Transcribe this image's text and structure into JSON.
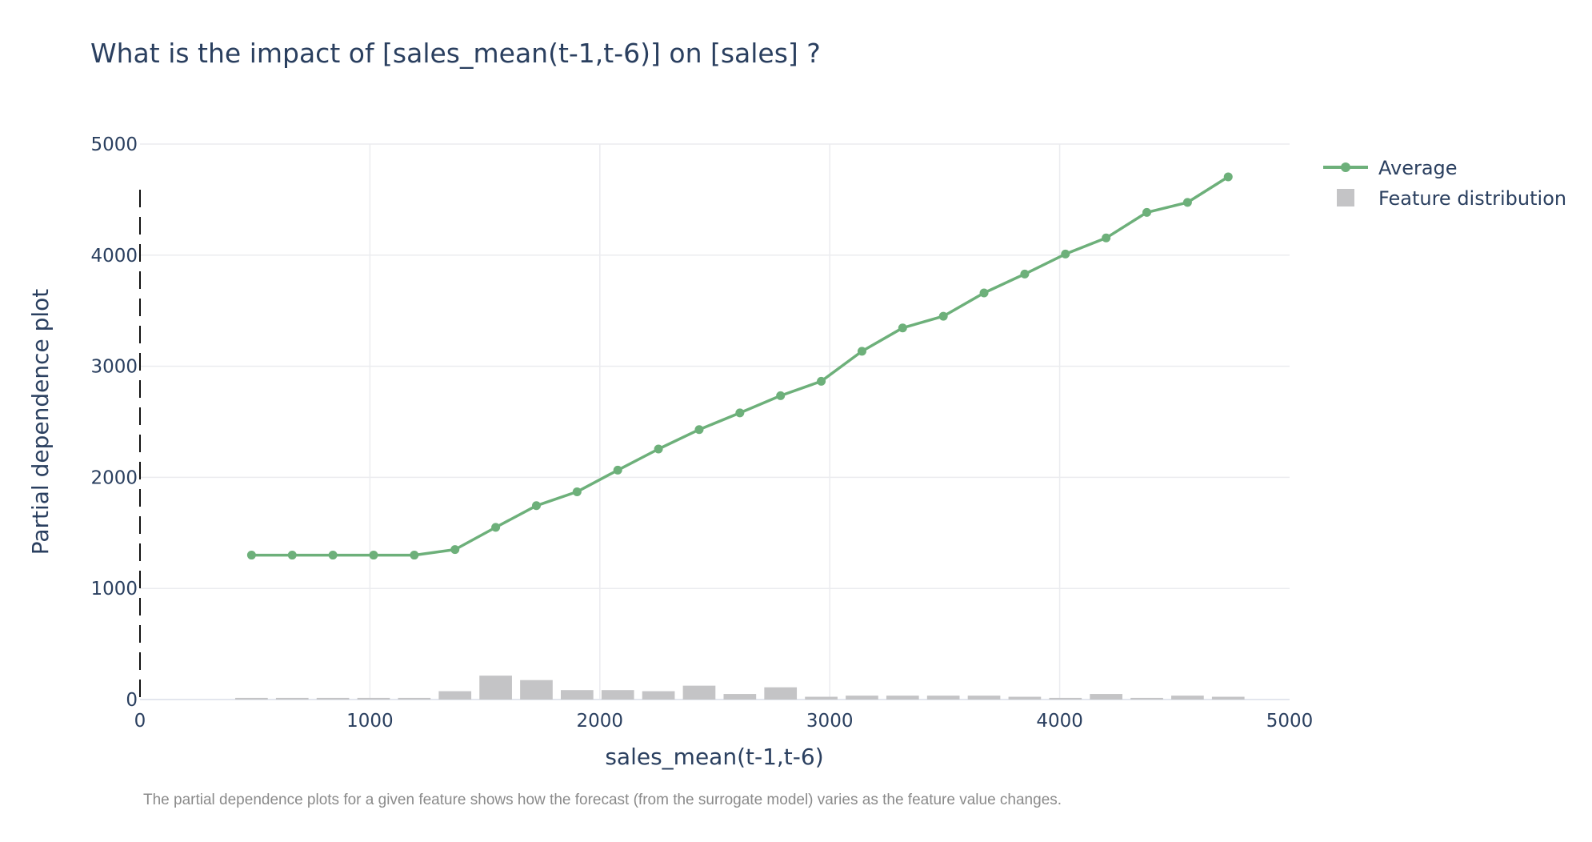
{
  "chart_data": {
    "type": "line",
    "title": "What is the impact of [sales_mean(t-1,t-6)] on [sales] ?",
    "xlabel": "sales_mean(t-1,t-6)",
    "ylabel": "Partial dependence plot",
    "xlim": [
      0,
      5000
    ],
    "ylim": [
      0,
      5000
    ],
    "x_ticks": [
      "0",
      "1000",
      "2000",
      "3000",
      "4000",
      "5000"
    ],
    "y_ticks": [
      "0",
      "1000",
      "2000",
      "3000",
      "4000",
      "5000"
    ],
    "grid": true,
    "legend_position": "top-right, outside plot",
    "caption": "The partial dependence plots for a given feature shows how the forecast  (from the surrogate model) varies as the feature value changes.",
    "series": [
      {
        "name": "Average",
        "type": "line+markers",
        "color": "#6db07a",
        "x": [
          485,
          662,
          839,
          1016,
          1193,
          1370,
          1547,
          1724,
          1901,
          2078,
          2255,
          2432,
          2609,
          2786,
          2963,
          3140,
          3317,
          3494,
          3671,
          3848,
          4025,
          4202,
          4379,
          4556,
          4733
        ],
        "y": [
          1300,
          1300,
          1300,
          1300,
          1300,
          1350,
          1550,
          1745,
          1870,
          2065,
          2255,
          2430,
          2580,
          2735,
          2865,
          3135,
          3345,
          3450,
          3660,
          3830,
          4010,
          4155,
          4385,
          4475,
          4705
        ]
      },
      {
        "name": "Feature distribution",
        "type": "bar",
        "color": "#c4c4c6",
        "x": [
          485,
          662,
          839,
          1016,
          1193,
          1370,
          1547,
          1724,
          1901,
          2078,
          2255,
          2432,
          2609,
          2786,
          2963,
          3140,
          3317,
          3494,
          3671,
          3848,
          4025,
          4202,
          4379,
          4556,
          4733
        ],
        "values": [
          15,
          15,
          15,
          15,
          15,
          75,
          215,
          175,
          85,
          85,
          75,
          125,
          50,
          110,
          25,
          35,
          35,
          35,
          35,
          25,
          15,
          50,
          15,
          35,
          25
        ]
      }
    ],
    "annotation": {
      "type": "dashed-vertical-line",
      "color": "#111111"
    }
  }
}
